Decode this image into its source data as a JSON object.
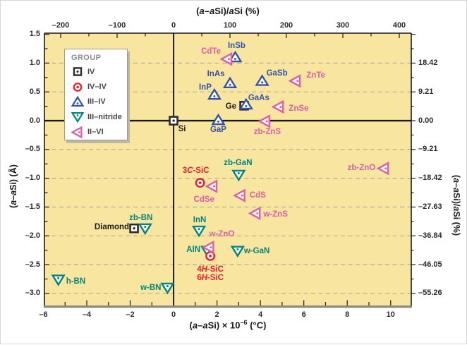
{
  "palette": {
    "plot_bg": "#F8E5A0",
    "axis": "#1A1A1A",
    "grid": "#ADA795",
    "bottom_spine": "#8A8A80",
    "tick_label": "#2B2B2B",
    "legend_title": "#8C8C8C",
    "legend_text": "#45454C",
    "group_colors": {
      "IV": "#2B2B2B",
      "IV–IV": "#E41E2A",
      "III–IV": "#3552A4",
      "III–nitride": "#00857B",
      "II–VI": "#DB5FA4"
    }
  },
  "chart_data": {
    "type": "scatter",
    "axes": {
      "top": {
        "title": "(a–aSi)/aSi (%)",
        "title_html": "(<i>a</i>–<i>a</i>Si)/<i>a</i>Si (%)",
        "tick_values": [
          -200,
          -100,
          0,
          100,
          200,
          300,
          400
        ],
        "tick_labels": [
          "–200",
          "–100",
          "0",
          "100",
          "200",
          "300",
          "400"
        ],
        "minor_step": 50,
        "range": [
          -228.75,
          421.25
        ]
      },
      "bottom": {
        "title": "(a–aSi) × 10⁻⁶ (°C)",
        "title_html": "(<i>a</i>–<i>a</i>Si) × 10<sup>–6</sup> (°C)",
        "tick_values": [
          -6,
          -4,
          -2,
          0,
          2,
          4,
          6,
          8,
          10
        ],
        "tick_labels": [
          "–6",
          "–4",
          "–2",
          "0",
          "2",
          "4",
          "6",
          "8",
          "10"
        ],
        "minor_step": 1,
        "range": [
          -5.95,
          10.95
        ]
      },
      "left": {
        "title": "(a–aSi) (Å)",
        "title_html": "(<i>a</i>–<i>a</i>Si) (Å)",
        "tick_values": [
          1.5,
          1.0,
          0.5,
          0.0,
          -0.5,
          -1.0,
          -1.5,
          -2.0,
          -2.5,
          -3.0
        ],
        "tick_labels": [
          "1.5",
          "1.0",
          "0.5",
          "0.0",
          "–0.5",
          "–1.0",
          "–1.5",
          "–2.0",
          "–2.5",
          "–3.0"
        ],
        "minor_step": 0.25,
        "range": [
          1.52,
          -3.21
        ]
      },
      "right": {
        "title": "(a–aSi)/aSi (%)",
        "title_html": "(<i>a</i>–<i>a</i>Si)/<i>a</i>Si (%)",
        "tick_values": [
          1.0,
          0.5,
          0.0,
          -0.5,
          -1.0,
          -1.5,
          -2.0,
          -2.5,
          -3.0
        ],
        "tick_labels": [
          "18.42",
          "9.21",
          "0.00",
          "–9.21",
          "–18.42",
          "–27.63",
          "–36.84",
          "–46.05",
          "–55.26"
        ],
        "minor_step": 0.25
      }
    },
    "gridlines_y": [
      1.0,
      0.5,
      -0.5,
      -1.0,
      -1.5,
      -2.0,
      -2.5,
      -3.0
    ],
    "zero_lines": {
      "x": 0,
      "y": 0
    },
    "legend": {
      "title": "GROUP",
      "items": [
        "IV",
        "IV–IV",
        "III–IV",
        "III–nitride",
        "II–VI"
      ]
    },
    "series": [
      {
        "group": "IV",
        "shape": "square",
        "z": 1,
        "label_color": "#1A1A1A",
        "points": [
          {
            "name": "Si",
            "x": 0,
            "y": 0,
            "label_pos": "bottom",
            "dx": 12,
            "dy": -3
          },
          {
            "name": "Ge",
            "x": 3.25,
            "y": 0.26,
            "label_pos": "left",
            "dy": 3
          },
          {
            "name": "Diamond",
            "x": -1.82,
            "y": -1.87,
            "label_pos": "left",
            "dx": 4
          }
        ]
      },
      {
        "group": "IV–IV",
        "shape": "circle",
        "z": 4,
        "points": [
          {
            "name": "3C-SiC",
            "label_html": "3<i>C</i>-SiC",
            "x": 1.22,
            "y": -1.08,
            "label_pos": "top",
            "dx": -6,
            "dy": -2
          },
          {
            "name": "4H-SiC / 6H-SiC",
            "label_html": "4<i>H</i>-SiC<br>6<i>H</i>-SiC",
            "x": 1.69,
            "y": -2.35,
            "label_pos": "bottom",
            "dy": 4
          }
        ]
      },
      {
        "group": "III–IV",
        "shape": "triangle-up",
        "z": 2,
        "points": [
          {
            "name": "InSb",
            "x": 2.84,
            "y": 1.1,
            "label_pos": "top",
            "dx": 2,
            "dy": -1
          },
          {
            "name": "InAs",
            "x": 2.6,
            "y": 0.65,
            "label_pos": "top",
            "dx": -20,
            "dy": 2
          },
          {
            "name": "InP",
            "x": 1.88,
            "y": 0.45,
            "label_pos": "top",
            "dx": -13,
            "dy": 5
          },
          {
            "name": "GaSb",
            "x": 4.08,
            "y": 0.69,
            "label_pos": "top",
            "dx": 21,
            "dy": 4
          },
          {
            "name": "GaAs",
            "x": 3.34,
            "y": 0.28,
            "label_pos": "top",
            "dx": 18,
            "dy": 6
          },
          {
            "name": "GaP",
            "x": 2.06,
            "y": 0.01,
            "label_pos": "bottom",
            "dy": -1
          }
        ]
      },
      {
        "group": "III–nitride",
        "shape": "triangle-down",
        "z": 3,
        "points": [
          {
            "name": "zb-GaN",
            "x": 3.0,
            "y": -0.94,
            "label_pos": "top",
            "dx": -1,
            "dy": -2
          },
          {
            "name": "InN",
            "x": 1.17,
            "y": -1.91,
            "label_pos": "top",
            "dx": 1
          },
          {
            "name": "AlN",
            "x": 1.56,
            "y": -2.26,
            "label_pos": "left",
            "dx": 1
          },
          {
            "name": "w-GaN",
            "x": 2.95,
            "y": -2.26,
            "label_pos": "right",
            "dx": -2,
            "dy": 2
          },
          {
            "name": "zb-BN",
            "x": -1.31,
            "y": -1.87,
            "label_pos": "top",
            "dx": -6
          },
          {
            "name": "h-BN",
            "x": -5.31,
            "y": -2.76,
            "label_pos": "right",
            "dy": 4
          },
          {
            "name": "w-BN",
            "x": -0.28,
            "y": -2.9,
            "label_pos": "left",
            "dx": 2,
            "dy": 2
          }
        ]
      },
      {
        "group": "II–VI",
        "shape": "triangle-left",
        "z": 5,
        "points": [
          {
            "name": "CdTe",
            "x": 2.47,
            "y": 1.07,
            "label_pos": "top",
            "dx": -23,
            "dy": 4
          },
          {
            "name": "ZnTe",
            "x": 5.63,
            "y": 0.69,
            "label_pos": "right",
            "dx": 4,
            "dy": -6
          },
          {
            "name": "ZnSe",
            "x": 4.85,
            "y": 0.24,
            "label_pos": "right",
            "dx": 3,
            "dy": 4
          },
          {
            "name": "zb-ZnS",
            "x": 4.22,
            "y": -0.01,
            "label_pos": "bottom",
            "dx": 3
          },
          {
            "name": "CdSe",
            "x": 1.79,
            "y": -1.14,
            "label_pos": "bottom",
            "dx": -12,
            "dy": 4
          },
          {
            "name": "CdS",
            "x": 3.08,
            "y": -1.3,
            "label_pos": "right",
            "dx": 2,
            "dy": 1
          },
          {
            "name": "w-ZnS",
            "x": 3.78,
            "y": -1.61,
            "label_pos": "right",
            "dy": 3
          },
          {
            "name": "w-ZnO",
            "x": 1.64,
            "y": -2.2,
            "label_pos": "right",
            "dx": -11,
            "dy": -17
          },
          {
            "name": "zb-ZnO",
            "x": 9.69,
            "y": -0.83,
            "label_pos": "left",
            "dx": -1,
            "dy": 1
          }
        ]
      }
    ]
  }
}
